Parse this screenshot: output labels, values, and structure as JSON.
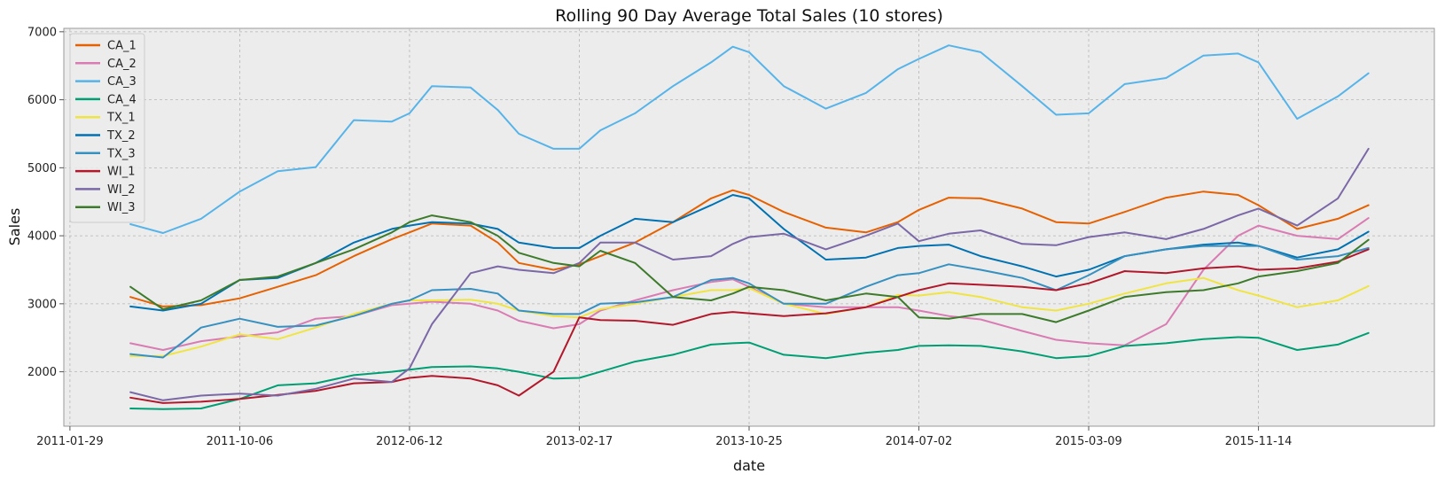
{
  "chart_data": {
    "type": "line",
    "title": "Rolling 90 Day Average Total Sales (10 stores)",
    "xlabel": "date",
    "ylabel": "Sales",
    "x_ticks": [
      "2011-01-29",
      "2011-10-06",
      "2012-06-12",
      "2013-02-17",
      "2013-10-25",
      "2014-07-02",
      "2015-03-09",
      "2015-11-14"
    ],
    "y_ticks": [
      2000,
      3000,
      4000,
      5000,
      6000,
      7000
    ],
    "xlim": [
      "2011-01-20",
      "2016-07-30"
    ],
    "ylim": [
      1200,
      7050
    ],
    "grid": true,
    "legend_position": "upper left",
    "x": [
      "2011-04-28",
      "2011-06-15",
      "2011-08-10",
      "2011-10-06",
      "2011-12-01",
      "2012-01-26",
      "2012-03-22",
      "2012-05-17",
      "2012-06-12",
      "2012-07-15",
      "2012-09-10",
      "2012-10-20",
      "2012-11-20",
      "2013-01-10",
      "2013-02-17",
      "2013-03-20",
      "2013-05-10",
      "2013-07-05",
      "2013-08-30",
      "2013-10-01",
      "2013-10-25",
      "2013-12-15",
      "2014-02-15",
      "2014-04-15",
      "2014-06-01",
      "2014-07-02",
      "2014-08-15",
      "2014-10-01",
      "2014-12-01",
      "2015-01-20",
      "2015-03-09",
      "2015-05-01",
      "2015-07-01",
      "2015-08-25",
      "2015-10-15",
      "2015-11-14",
      "2016-01-10",
      "2016-03-10",
      "2016-04-24"
    ],
    "series": [
      {
        "name": "CA_1",
        "color": "#e66101",
        "values": [
          3100,
          2960,
          2980,
          3080,
          3250,
          3420,
          3700,
          3950,
          4050,
          4180,
          4150,
          3900,
          3600,
          3500,
          3580,
          3700,
          3900,
          4200,
          4550,
          4670,
          4600,
          4350,
          4120,
          4050,
          4200,
          4380,
          4560,
          4550,
          4400,
          4200,
          4180,
          4350,
          4560,
          4650,
          4600,
          4450,
          4100,
          4250,
          4450
        ]
      },
      {
        "name": "CA_2",
        "color": "#d97cb3",
        "values": [
          2420,
          2320,
          2450,
          2520,
          2580,
          2780,
          2820,
          2980,
          3000,
          3030,
          3000,
          2900,
          2750,
          2640,
          2700,
          2900,
          3050,
          3200,
          3320,
          3360,
          3250,
          3000,
          2950,
          2950,
          2950,
          2900,
          2820,
          2770,
          2600,
          2470,
          2420,
          2390,
          2700,
          3500,
          4000,
          4150,
          4000,
          3950,
          4260
        ]
      },
      {
        "name": "CA_3",
        "color": "#56b4e9",
        "values": [
          4170,
          4040,
          4250,
          4650,
          4950,
          5010,
          5700,
          5680,
          5800,
          6200,
          6180,
          5850,
          5500,
          5280,
          5280,
          5550,
          5800,
          6200,
          6550,
          6780,
          6700,
          6200,
          5870,
          6100,
          6450,
          6600,
          6800,
          6700,
          6200,
          5780,
          5800,
          6230,
          6320,
          6650,
          6680,
          6550,
          5720,
          6050,
          6390
        ]
      },
      {
        "name": "CA_4",
        "color": "#009e73",
        "values": [
          1460,
          1450,
          1460,
          1600,
          1800,
          1830,
          1950,
          2000,
          2030,
          2070,
          2080,
          2050,
          2000,
          1900,
          1910,
          2000,
          2150,
          2250,
          2400,
          2420,
          2430,
          2250,
          2200,
          2280,
          2320,
          2380,
          2390,
          2380,
          2300,
          2200,
          2230,
          2380,
          2420,
          2480,
          2510,
          2500,
          2320,
          2400,
          2570
        ]
      },
      {
        "name": "TX_1",
        "color": "#f0e442",
        "values": [
          2230,
          2230,
          2370,
          2550,
          2480,
          2650,
          2850,
          3000,
          3050,
          3050,
          3060,
          3000,
          2900,
          2820,
          2800,
          2920,
          3000,
          3100,
          3200,
          3200,
          3230,
          3000,
          2850,
          2950,
          3130,
          3120,
          3170,
          3100,
          2950,
          2900,
          3000,
          3150,
          3300,
          3380,
          3200,
          3120,
          2950,
          3050,
          3260
        ]
      },
      {
        "name": "TX_2",
        "color": "#0072b2",
        "values": [
          2960,
          2900,
          3000,
          3350,
          3380,
          3600,
          3900,
          4100,
          4150,
          4200,
          4180,
          4100,
          3900,
          3820,
          3820,
          4000,
          4250,
          4200,
          4450,
          4600,
          4550,
          4100,
          3650,
          3680,
          3820,
          3850,
          3870,
          3700,
          3550,
          3400,
          3500,
          3700,
          3800,
          3870,
          3900,
          3850,
          3680,
          3800,
          4060
        ]
      },
      {
        "name": "TX_3",
        "color": "#3690c0",
        "values": [
          2260,
          2210,
          2650,
          2780,
          2660,
          2680,
          2820,
          3000,
          3050,
          3200,
          3220,
          3150,
          2900,
          2850,
          2850,
          3000,
          3020,
          3100,
          3350,
          3380,
          3300,
          3000,
          3000,
          3250,
          3420,
          3450,
          3580,
          3500,
          3380,
          3200,
          3420,
          3700,
          3800,
          3850,
          3850,
          3850,
          3650,
          3700,
          3820
        ]
      },
      {
        "name": "WI_1",
        "color": "#b2182b",
        "values": [
          1620,
          1540,
          1560,
          1600,
          1660,
          1720,
          1830,
          1850,
          1910,
          1940,
          1900,
          1800,
          1650,
          2000,
          2800,
          2760,
          2750,
          2690,
          2850,
          2880,
          2860,
          2820,
          2860,
          2950,
          3100,
          3200,
          3300,
          3280,
          3250,
          3200,
          3300,
          3480,
          3450,
          3520,
          3550,
          3500,
          3520,
          3620,
          3800
        ]
      },
      {
        "name": "WI_2",
        "color": "#7b68a6",
        "values": [
          1700,
          1580,
          1650,
          1680,
          1650,
          1750,
          1900,
          1850,
          2050,
          2700,
          3450,
          3550,
          3500,
          3450,
          3600,
          3900,
          3900,
          3650,
          3700,
          3880,
          3980,
          4030,
          3800,
          4000,
          4180,
          3920,
          4030,
          4080,
          3880,
          3860,
          3980,
          4050,
          3950,
          4100,
          4300,
          4400,
          4150,
          4550,
          5280
        ]
      },
      {
        "name": "WI_3",
        "color": "#3d7b2b",
        "values": [
          3250,
          2920,
          3050,
          3350,
          3400,
          3600,
          3800,
          4050,
          4200,
          4300,
          4200,
          4000,
          3750,
          3600,
          3550,
          3780,
          3600,
          3100,
          3050,
          3150,
          3250,
          3200,
          3050,
          3150,
          3100,
          2800,
          2780,
          2850,
          2850,
          2730,
          2900,
          3100,
          3170,
          3200,
          3300,
          3400,
          3480,
          3600,
          3940
        ]
      }
    ]
  }
}
